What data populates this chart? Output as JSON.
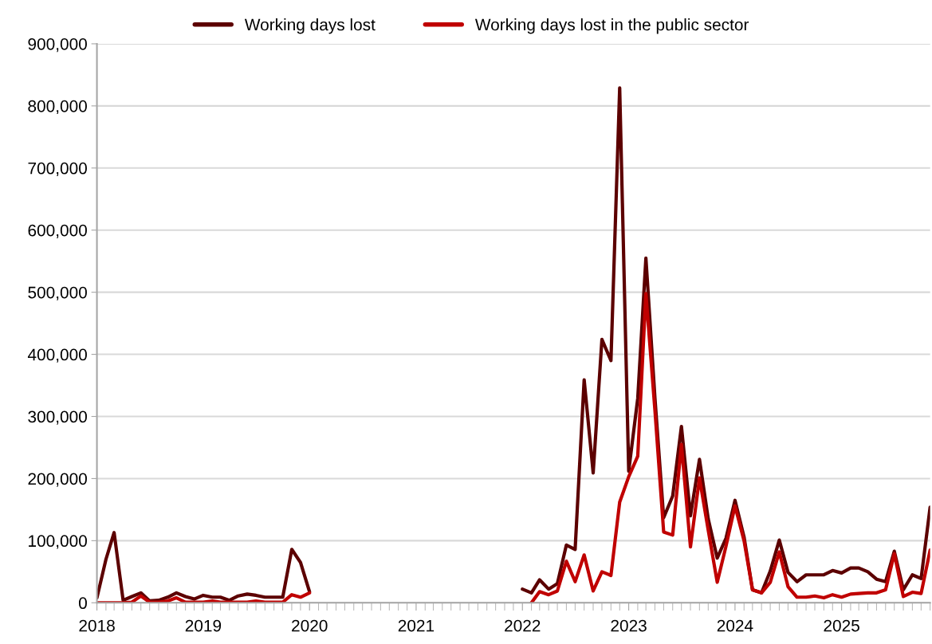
{
  "chart_data": {
    "type": "line",
    "x": [
      "2018-01",
      "2018-02",
      "2018-03",
      "2018-04",
      "2018-05",
      "2018-06",
      "2018-07",
      "2018-08",
      "2018-09",
      "2018-10",
      "2018-11",
      "2018-12",
      "2019-01",
      "2019-02",
      "2019-03",
      "2019-04",
      "2019-05",
      "2019-06",
      "2019-07",
      "2019-08",
      "2019-09",
      "2019-10",
      "2019-11",
      "2019-12",
      "2020-01",
      "2020-02",
      "2020-03",
      "2020-04",
      "2020-05",
      "2020-06",
      "2020-07",
      "2020-08",
      "2020-09",
      "2020-10",
      "2020-11",
      "2020-12",
      "2021-01",
      "2021-02",
      "2021-03",
      "2021-04",
      "2021-05",
      "2021-06",
      "2021-07",
      "2021-08",
      "2021-09",
      "2021-10",
      "2021-11",
      "2021-12",
      "2022-01",
      "2022-02",
      "2022-03",
      "2022-04",
      "2022-05",
      "2022-06",
      "2022-07",
      "2022-08",
      "2022-09",
      "2022-10",
      "2022-11",
      "2022-12",
      "2023-01",
      "2023-02",
      "2023-03",
      "2023-04",
      "2023-05",
      "2023-06",
      "2023-07",
      "2023-08",
      "2023-09",
      "2023-10",
      "2023-11",
      "2023-12",
      "2024-01",
      "2024-02",
      "2024-03",
      "2024-04",
      "2024-05",
      "2024-06",
      "2024-07",
      "2024-08",
      "2024-09",
      "2024-10",
      "2024-11",
      "2024-12",
      "2025-01",
      "2025-02",
      "2025-03",
      "2025-04",
      "2025-05",
      "2025-06",
      "2025-07",
      "2025-08",
      "2025-09",
      "2025-10",
      "2025-11"
    ],
    "series": [
      {
        "name": "Working days lost",
        "color": "#5c0000",
        "values": [
          8000,
          70000,
          113000,
          4000,
          10000,
          16000,
          3000,
          4000,
          9000,
          16000,
          10000,
          6000,
          12000,
          9000,
          9000,
          4000,
          11000,
          14000,
          12000,
          9000,
          9000,
          9000,
          86000,
          65000,
          18000,
          null,
          null,
          null,
          null,
          null,
          null,
          null,
          null,
          null,
          null,
          null,
          null,
          null,
          null,
          null,
          null,
          null,
          null,
          null,
          null,
          null,
          null,
          null,
          22000,
          16000,
          37000,
          22000,
          31000,
          93000,
          86000,
          359000,
          209000,
          424000,
          390000,
          829000,
          212000,
          329000,
          555000,
          330000,
          137000,
          172000,
          284000,
          140000,
          231000,
          135000,
          72000,
          104000,
          165000,
          106000,
          21000,
          16000,
          51000,
          101000,
          49000,
          34000,
          45000,
          45000,
          45000,
          52000,
          48000,
          56000,
          56000,
          50000,
          38000,
          34000,
          83000,
          21000,
          45000,
          39000,
          154000
        ]
      },
      {
        "name": "Working days lost in the public sector",
        "color": "#c00000",
        "values": [
          0,
          0,
          0,
          0,
          1000,
          11000,
          1000,
          1000,
          3000,
          8000,
          1000,
          1000,
          1000,
          3000,
          1000,
          1000,
          1000,
          1000,
          3000,
          1000,
          1000,
          1000,
          13000,
          9000,
          16000,
          null,
          null,
          null,
          null,
          null,
          null,
          null,
          null,
          null,
          null,
          null,
          null,
          null,
          null,
          null,
          null,
          null,
          null,
          null,
          null,
          null,
          null,
          null,
          null,
          0,
          18000,
          13000,
          19000,
          67000,
          34000,
          77000,
          19000,
          50000,
          44000,
          162000,
          203000,
          236000,
          498000,
          310000,
          114000,
          109000,
          255000,
          90000,
          201000,
          117000,
          33000,
          91000,
          156000,
          100000,
          21000,
          16000,
          33000,
          82000,
          26000,
          9000,
          9000,
          11000,
          8000,
          13000,
          9000,
          14000,
          15000,
          16000,
          16000,
          21000,
          79000,
          10000,
          17000,
          15000,
          85000
        ]
      }
    ],
    "xlim": [
      "2018-01",
      "2025-11"
    ],
    "xticks": [
      "2018",
      "2019",
      "2020",
      "2021",
      "2022",
      "2023",
      "2024",
      "2025"
    ],
    "ylim": [
      0,
      900000
    ],
    "yticks": [
      {
        "value": 0,
        "label": "0"
      },
      {
        "value": 100000,
        "label": "100,000"
      },
      {
        "value": 200000,
        "label": "200,000"
      },
      {
        "value": 300000,
        "label": "300,000"
      },
      {
        "value": 400000,
        "label": "400,000"
      },
      {
        "value": 500000,
        "label": "500,000"
      },
      {
        "value": 600000,
        "label": "600,000"
      },
      {
        "value": 700000,
        "label": "700,000"
      },
      {
        "value": 800000,
        "label": "800,000"
      },
      {
        "value": 900000,
        "label": "900,000"
      }
    ],
    "grid": "y",
    "legend": "top",
    "marker": "none",
    "line_style": "solid"
  }
}
